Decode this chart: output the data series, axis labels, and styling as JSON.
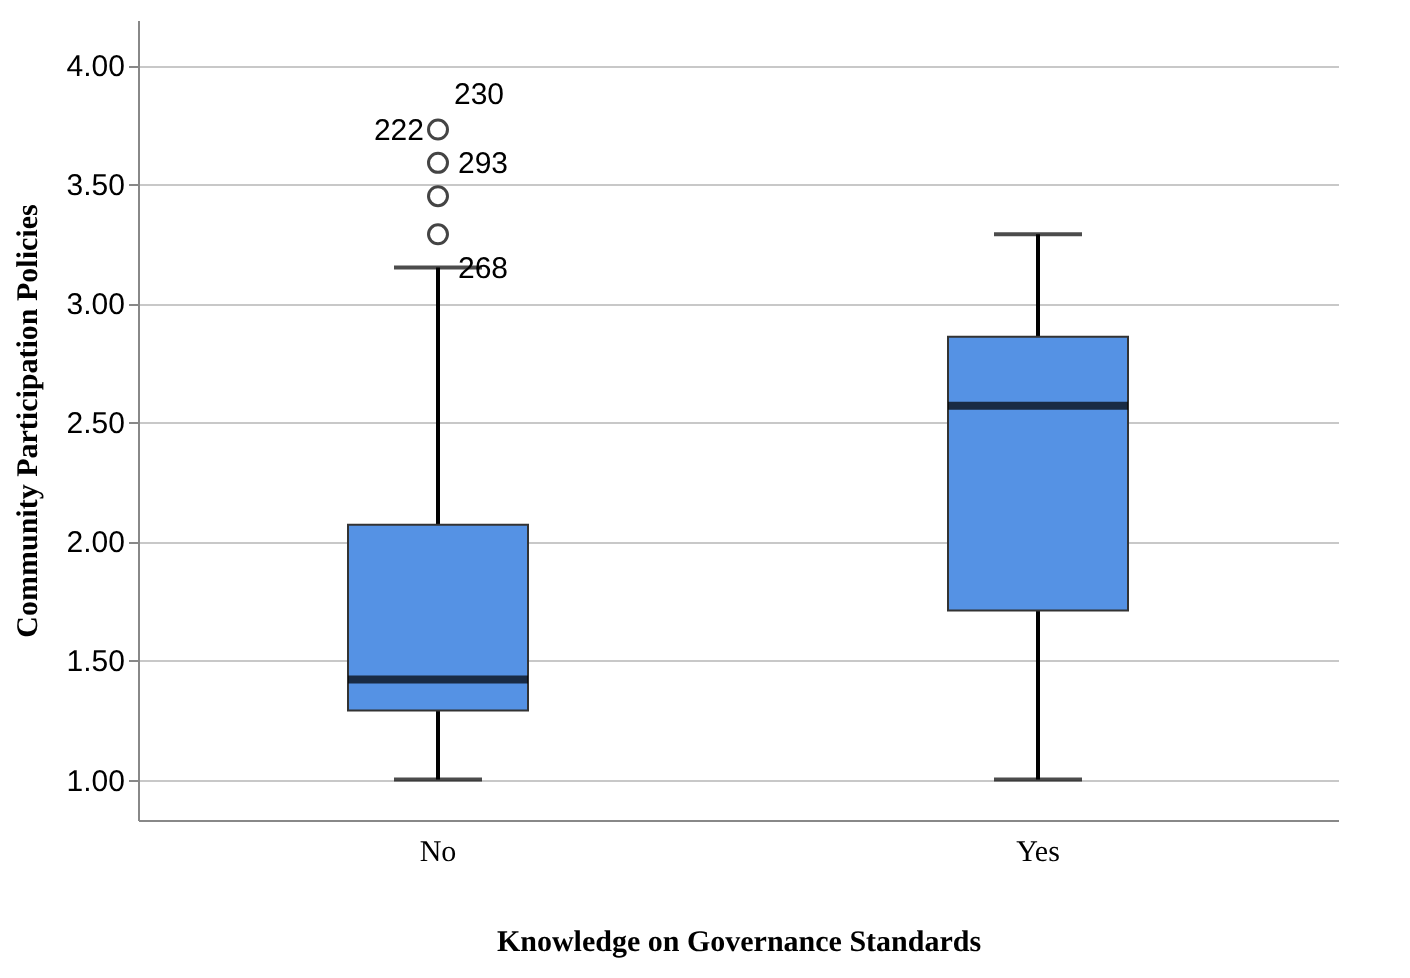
{
  "chart_data": {
    "type": "box",
    "xlabel": "Knowledge on Governance Standards",
    "ylabel": "Community Participation Policies",
    "categories": [
      "No",
      "Yes"
    ],
    "boxes": [
      {
        "low": 1.0,
        "q1": 1.29,
        "median": 1.42,
        "q3": 2.07,
        "high": 3.15
      },
      {
        "low": 1.0,
        "q1": 1.71,
        "median": 2.57,
        "q3": 2.86,
        "high": 3.29
      }
    ],
    "series": [
      {
        "type": "scatter",
        "x": [
          "No",
          "No",
          "No",
          "No"
        ],
        "values": [
          3.29,
          3.45,
          3.59,
          3.73
        ],
        "color": "#444444"
      }
    ],
    "color": "#5592e4",
    "ylim": [
      0.83,
      4.19
    ],
    "yticks": [
      {
        "value": 1,
        "label": "1.00"
      },
      {
        "value": 1.5,
        "label": "1.50"
      },
      {
        "value": 2,
        "label": "2.00"
      },
      {
        "value": 2.5,
        "label": "2.50"
      },
      {
        "value": 3,
        "label": "3.00"
      },
      {
        "value": 3.5,
        "label": "3.50"
      },
      {
        "value": 4,
        "label": "4.00"
      }
    ],
    "grid": "y",
    "marker": "circle",
    "annotations": [
      {
        "text": "222",
        "x": "No",
        "y": 3.73
      },
      {
        "text": "230",
        "x": "No",
        "y": 3.73
      },
      {
        "text": "293",
        "x": "No",
        "y": 3.59
      },
      {
        "text": "268",
        "x": "No",
        "y": 3.15
      }
    ]
  }
}
